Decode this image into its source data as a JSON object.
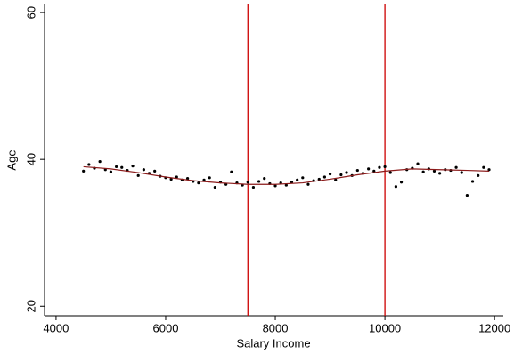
{
  "chart_data": {
    "type": "scatter",
    "xlabel": "Salary Income",
    "ylabel": "Age",
    "xlim": [
      3790,
      12160
    ],
    "ylim": [
      18.7,
      61.1
    ],
    "xticks": [
      4000,
      6000,
      8000,
      10000,
      12000
    ],
    "yticks": [
      20,
      40,
      60
    ],
    "series": [
      {
        "kind": "scatter",
        "color": "#000000",
        "x": [
          4500,
          4600,
          4700,
          4800,
          4900,
          5000,
          5100,
          5200,
          5300,
          5400,
          5500,
          5600,
          5700,
          5800,
          5900,
          6000,
          6100,
          6200,
          6300,
          6400,
          6500,
          6600,
          6700,
          6800,
          6900,
          7000,
          7100,
          7200,
          7300,
          7400,
          7500,
          7600,
          7700,
          7800,
          7900,
          8000,
          8100,
          8200,
          8300,
          8400,
          8500,
          8600,
          8700,
          8800,
          8900,
          9000,
          9100,
          9200,
          9300,
          9400,
          9500,
          9600,
          9700,
          9800,
          9900,
          10000,
          10100,
          10200,
          10300,
          10400,
          10500,
          10600,
          10700,
          10800,
          10900,
          11000,
          11100,
          11200,
          11300,
          11400,
          11500,
          11600,
          11700,
          11800,
          11900
        ],
        "values": [
          38.4,
          39.3,
          38.8,
          39.7,
          38.6,
          38.3,
          39.0,
          38.9,
          38.5,
          39.1,
          37.8,
          38.6,
          38.1,
          38.4,
          37.7,
          37.5,
          37.3,
          37.6,
          37.2,
          37.4,
          37.0,
          36.8,
          37.2,
          37.5,
          36.2,
          36.9,
          36.6,
          38.3,
          36.8,
          36.5,
          36.9,
          36.2,
          37.0,
          37.4,
          36.7,
          36.4,
          36.8,
          36.5,
          36.9,
          37.2,
          37.5,
          36.6,
          37.1,
          37.3,
          37.6,
          38.0,
          37.2,
          37.9,
          38.2,
          37.8,
          38.5,
          38.1,
          38.7,
          38.4,
          38.9,
          39.0,
          38.2,
          36.3,
          36.9,
          38.6,
          38.8,
          39.4,
          38.3,
          38.7,
          38.4,
          38.1,
          38.6,
          38.5,
          38.9,
          38.2,
          35.1,
          37.0,
          37.8,
          38.9,
          38.6
        ]
      },
      {
        "kind": "line",
        "color": "#8b1a1a",
        "x": [
          4500,
          5000,
          5500,
          6000,
          6500,
          7000,
          7500,
          8000,
          8500,
          9000,
          9500,
          10000,
          10500,
          11000,
          11500,
          11900
        ],
        "values": [
          39.0,
          38.7,
          38.2,
          37.6,
          37.1,
          36.8,
          36.6,
          36.6,
          36.8,
          37.3,
          37.9,
          38.4,
          38.7,
          38.6,
          38.5,
          38.4
        ]
      }
    ],
    "xlines": [
      7500,
      10000
    ],
    "xline_color": "#cc0000"
  }
}
